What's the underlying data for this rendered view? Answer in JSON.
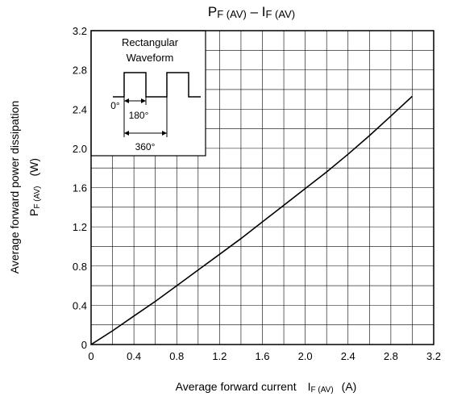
{
  "chart_data": {
    "type": "line",
    "title": {
      "main_p": "P",
      "main_p_sub": "F (AV)",
      "dash": " – ",
      "main_i": "I",
      "main_i_sub": "F (AV)"
    },
    "xlabel": {
      "text": "Average forward current",
      "sym": "I",
      "sub": "F (AV)",
      "unit": "(A)"
    },
    "ylabel": {
      "text": "Average forward power dissipation",
      "sym": "P",
      "sub": "F (AV)",
      "unit": "(W)"
    },
    "xlim": [
      0,
      3.2
    ],
    "ylim": [
      0,
      3.2
    ],
    "x_ticks": [
      "0",
      "0.4",
      "0.8",
      "1.2",
      "1.6",
      "2.0",
      "2.4",
      "2.8",
      "3.2"
    ],
    "y_ticks": [
      "0",
      "0.4",
      "0.8",
      "1.2",
      "1.6",
      "2.0",
      "2.4",
      "2.8",
      "3.2"
    ],
    "grid": true,
    "minor_grid_step": 0.2,
    "series": [
      {
        "color": "#000000",
        "x": [
          0,
          0.2,
          0.4,
          0.6,
          0.8,
          1.0,
          1.2,
          1.4,
          1.6,
          1.8,
          2.0,
          2.2,
          2.4,
          2.6,
          2.8,
          3.0
        ],
        "y": [
          0,
          0.14,
          0.29,
          0.44,
          0.6,
          0.76,
          0.92,
          1.08,
          1.25,
          1.42,
          1.59,
          1.76,
          1.94,
          2.13,
          2.33,
          2.53
        ]
      }
    ],
    "inset": {
      "line1": "Rectangular",
      "line2": "Waveform",
      "angle0": "0°",
      "angle180": "180°",
      "angle360": "360°"
    }
  }
}
